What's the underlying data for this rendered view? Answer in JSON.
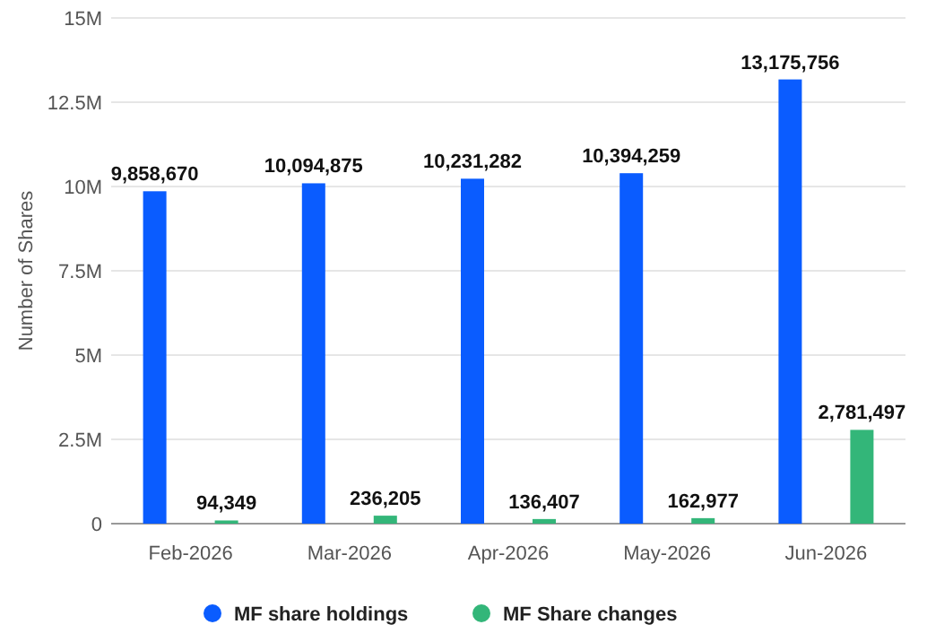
{
  "chart_data": {
    "type": "bar",
    "ylabel": "Number of Shares",
    "categories": [
      "Feb-2026",
      "Mar-2026",
      "Apr-2026",
      "May-2026",
      "Jun-2026"
    ],
    "series": [
      {
        "name": "MF share holdings",
        "color": "#0a5cff",
        "values": [
          9858670,
          10094875,
          10231282,
          10394259,
          13175756
        ],
        "value_labels": [
          "9,858,670",
          "10,094,875",
          "10,231,282",
          "10,394,259",
          "13,175,756"
        ]
      },
      {
        "name": "MF Share changes",
        "color": "#33b679",
        "values": [
          94349,
          236205,
          136407,
          162977,
          2781497
        ],
        "value_labels": [
          "94,349",
          "236,205",
          "136,407",
          "162,977",
          "2,781,497"
        ]
      }
    ],
    "ylim": [
      0,
      15000000
    ],
    "yticks": [
      0,
      {
        "value": 2500000,
        "label": "2.5M"
      },
      {
        "value": 5000000,
        "label": "5M"
      },
      {
        "value": 7500000,
        "label": "7.5M"
      },
      {
        "value": 10000000,
        "label": "10M"
      },
      {
        "value": 12500000,
        "label": "12.5M"
      },
      {
        "value": 15000000,
        "label": "15M"
      }
    ],
    "grid": "y",
    "legend": "bottom"
  }
}
